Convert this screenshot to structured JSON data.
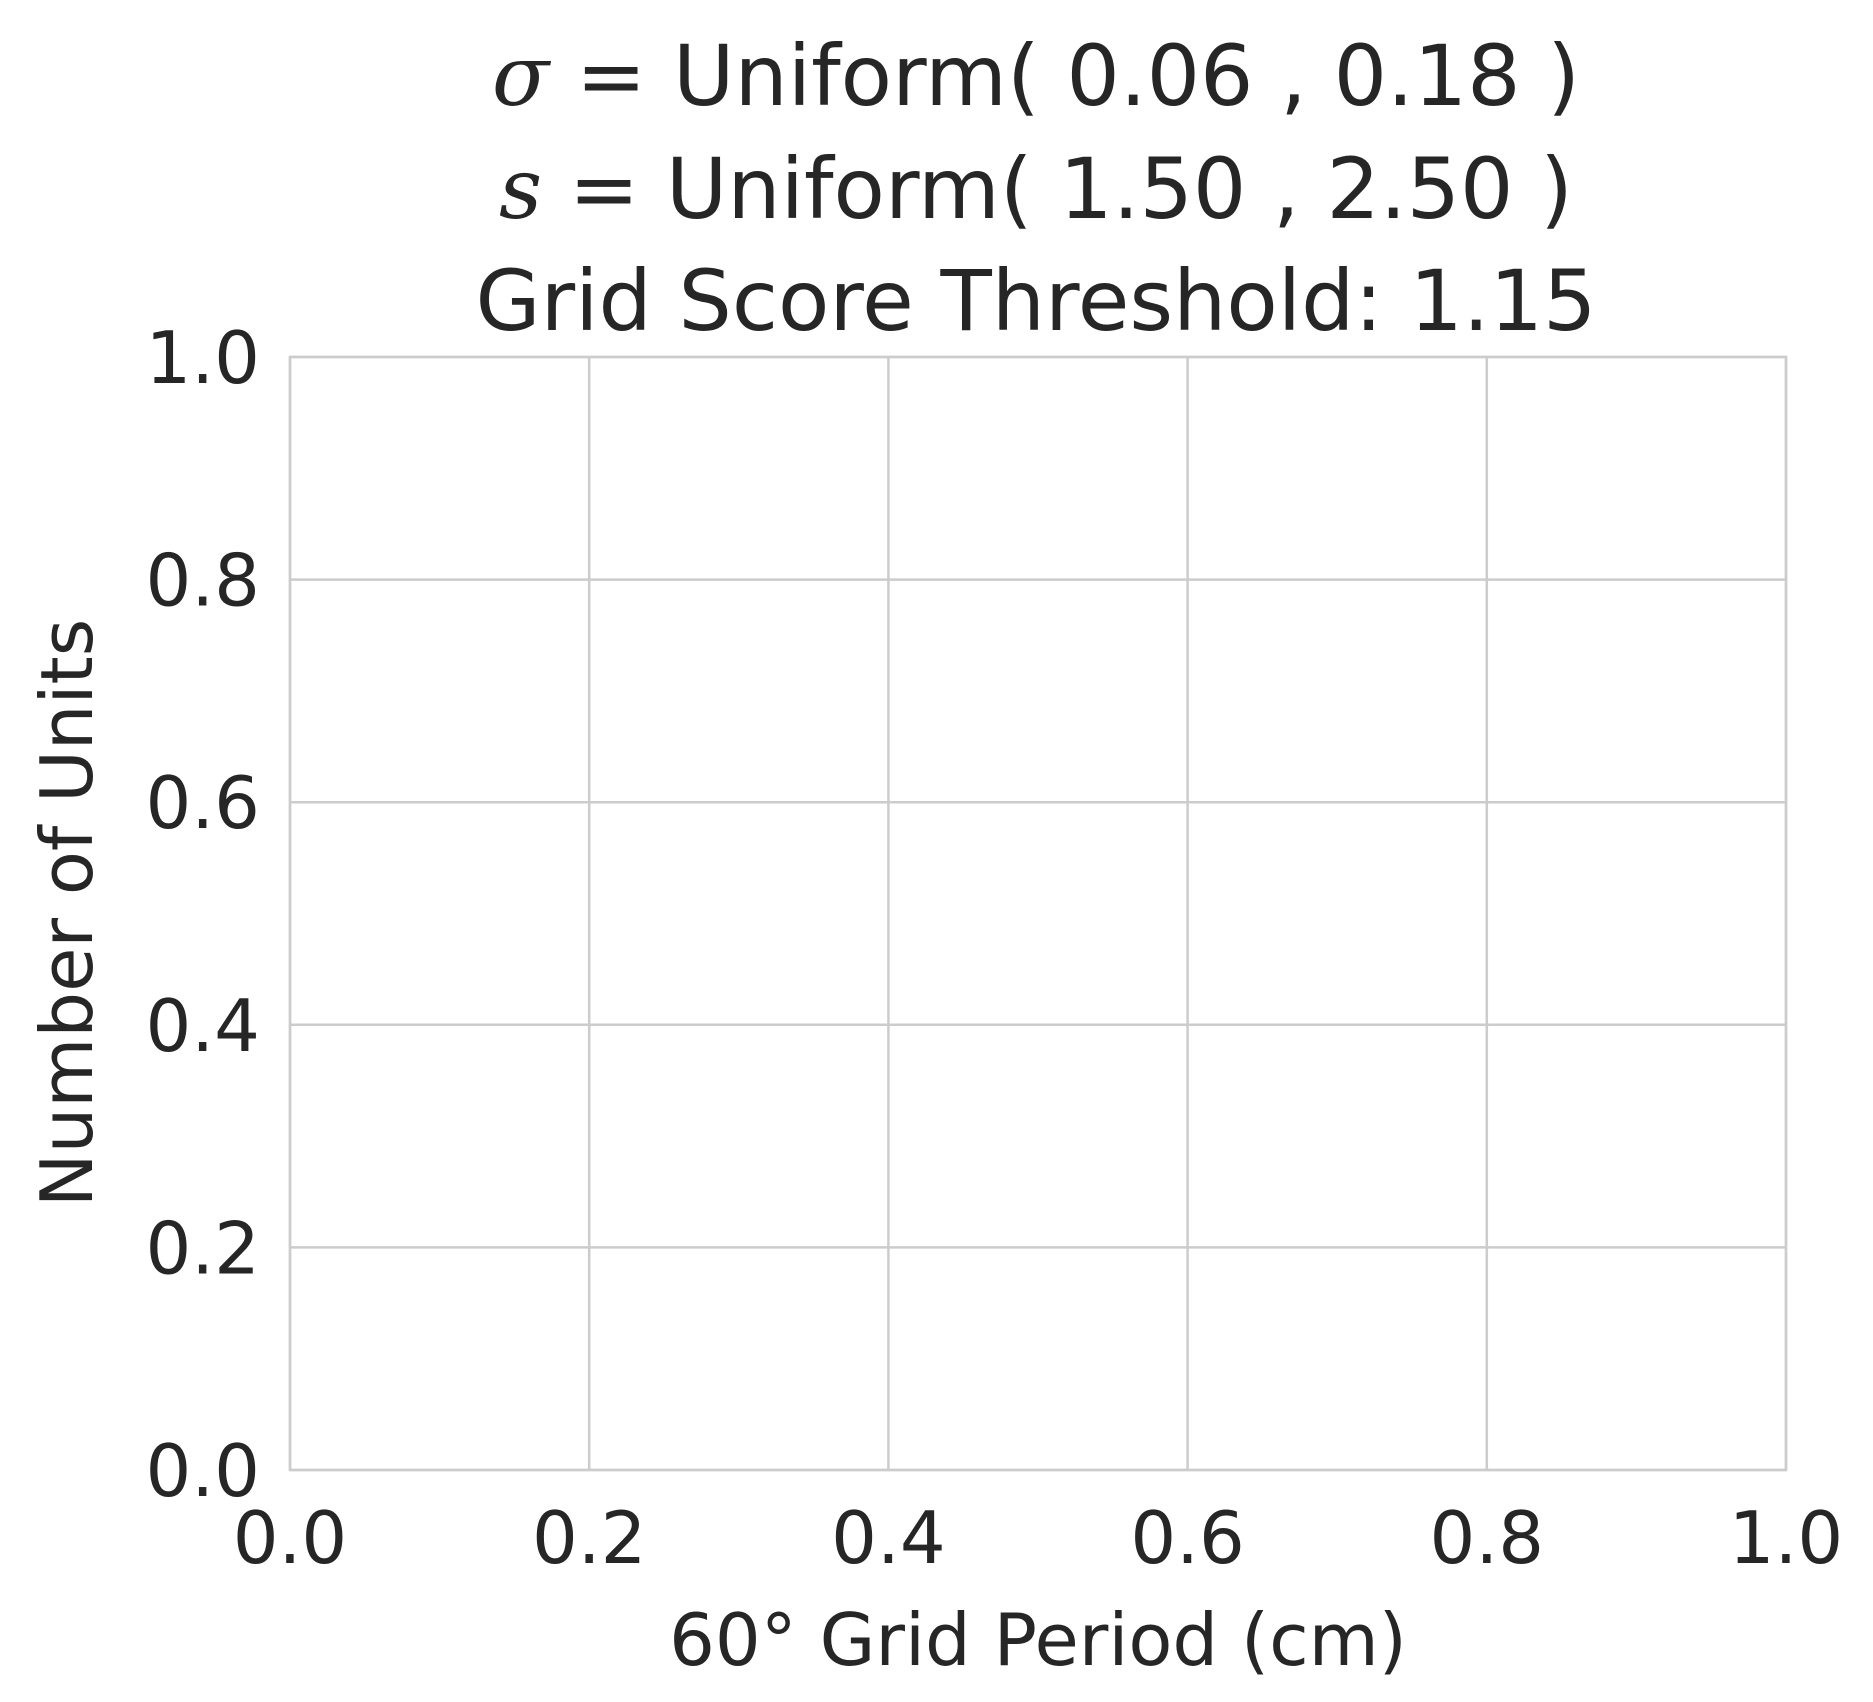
{
  "chart_data": {
    "type": "bar",
    "title_lines": [
      {
        "symbol": "σ",
        "text": " = Uniform( 0.06 , 0.18 )"
      },
      {
        "symbol": "s",
        "text": " = Uniform( 1.50 , 2.50 )"
      },
      {
        "symbol": "",
        "text": "Grid Score Threshold: 1.15"
      }
    ],
    "xlabel": "60° Grid Period (cm)",
    "ylabel": "Number of Units",
    "xlim": [
      0.0,
      1.0
    ],
    "ylim": [
      0.0,
      1.0
    ],
    "xticks": [
      "0.0",
      "0.2",
      "0.4",
      "0.6",
      "0.8",
      "1.0"
    ],
    "yticks": [
      "0.0",
      "0.2",
      "0.4",
      "0.6",
      "0.8",
      "1.0"
    ],
    "series": [],
    "grid": true,
    "colors": {
      "grid": "#cccccc",
      "text": "#262626",
      "background": "#ffffff"
    }
  }
}
